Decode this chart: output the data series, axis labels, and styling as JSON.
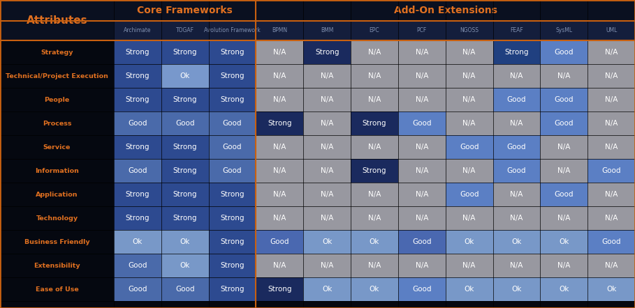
{
  "title_left": "Attributes",
  "header1": "Core Frameworks",
  "header2": "Add-On Extensions",
  "col_headers": [
    "Archimate",
    "TOGAF",
    "Avolution Framework",
    "BPMN",
    "BMM",
    "EPC",
    "PCF",
    "NGOSS",
    "FEAF",
    "SysML",
    "UML"
  ],
  "row_labels": [
    "Strategy",
    "Technical/Project Execution",
    "People",
    "Process",
    "Service",
    "Information",
    "Application",
    "Technology",
    "Business Friendly",
    "Extensibility",
    "Ease of Use"
  ],
  "row_label_colors": [
    "#b06020",
    "#b06020",
    "#b06020",
    "#c87030",
    "#b06020",
    "#b06020",
    "#b06020",
    "#b06020",
    "#c87030",
    "#c87030",
    "#c87030"
  ],
  "table_data": [
    [
      "Strong",
      "Strong",
      "Strong",
      "N/A",
      "Strong",
      "N/A",
      "N/A",
      "N/A",
      "Strong",
      "Good",
      "N/A"
    ],
    [
      "Strong",
      "Ok",
      "Strong",
      "N/A",
      "N/A",
      "N/A",
      "N/A",
      "N/A",
      "N/A",
      "N/A",
      "N/A"
    ],
    [
      "Strong",
      "Strong",
      "Strong",
      "N/A",
      "N/A",
      "N/A",
      "N/A",
      "N/A",
      "Good",
      "Good",
      "N/A"
    ],
    [
      "Good",
      "Good",
      "Good",
      "Strong",
      "N/A",
      "Strong",
      "Good",
      "N/A",
      "N/A",
      "Good",
      "N/A"
    ],
    [
      "Strong",
      "Strong",
      "Good",
      "N/A",
      "N/A",
      "N/A",
      "N/A",
      "Good",
      "Good",
      "N/A",
      "N/A"
    ],
    [
      "Good",
      "Strong",
      "Good",
      "N/A",
      "N/A",
      "Strong",
      "N/A",
      "N/A",
      "Good",
      "N/A",
      "Good"
    ],
    [
      "Strong",
      "Strong",
      "Strong",
      "N/A",
      "N/A",
      "N/A",
      "N/A",
      "Good",
      "N/A",
      "Good",
      "N/A"
    ],
    [
      "Strong",
      "Strong",
      "Strong",
      "N/A",
      "N/A",
      "N/A",
      "N/A",
      "N/A",
      "N/A",
      "N/A",
      "N/A"
    ],
    [
      "Ok",
      "Ok",
      "Strong",
      "Good",
      "Ok",
      "Ok",
      "Good",
      "Ok",
      "Ok",
      "Ok",
      "Good"
    ],
    [
      "Good",
      "Ok",
      "Strong",
      "N/A",
      "N/A",
      "N/A",
      "N/A",
      "N/A",
      "N/A",
      "N/A",
      "N/A"
    ],
    [
      "Good",
      "Good",
      "Strong",
      "Strong",
      "Ok",
      "Ok",
      "Good",
      "Ok",
      "Ok",
      "Ok",
      "Ok"
    ]
  ],
  "text_orange": "#e07020",
  "text_white": "#ffffff",
  "left_col_bg": "#050810",
  "header_bg": "#0a1020",
  "subheader_bg_core1": "#141e3c",
  "subheader_bg_core2": "#141e3c",
  "subheader_bg_core3": "#141e3c",
  "subheader_bg_addon": "#141e3c",
  "core_strong": "#2d4a90",
  "core_good_light": "#5878b8",
  "core_good": "#3d5aa0",
  "core_ok_light": "#7898cc",
  "core_ok": "#5a78b0",
  "core_na": "#8090a8",
  "addon_strong_dark": "#1a2a5e",
  "addon_strong": "#204080",
  "addon_good": "#4a68b0",
  "addon_ok": "#7090c0",
  "addon_na": "#9898a0",
  "grid_color": "#000000",
  "outer_border_color": "#c86010",
  "separator_color": "#c86010"
}
